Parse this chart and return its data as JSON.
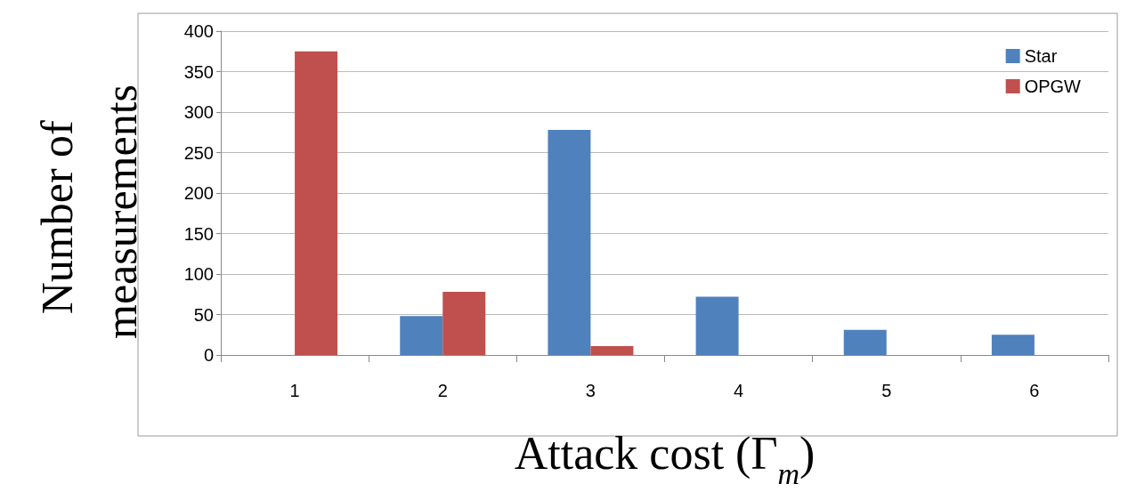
{
  "chart_data": {
    "type": "bar",
    "xlabel": "Attack cost (Γ$_{m}$)",
    "ylabel": "Number of measurements",
    "categories": [
      "1",
      "2",
      "3",
      "4",
      "5",
      "6"
    ],
    "series": [
      {
        "name": "Star",
        "color": "#4f81bd",
        "values": [
          0,
          48,
          278,
          72,
          31,
          25
        ]
      },
      {
        "name": "OPGW",
        "color": "#c0504d",
        "values": [
          375,
          78,
          11,
          0,
          0,
          0
        ]
      }
    ],
    "ylim": [
      0,
      400
    ],
    "yticks": [
      0,
      50,
      100,
      150,
      200,
      250,
      300,
      350,
      400
    ],
    "grid": "y",
    "legend": "top right"
  }
}
